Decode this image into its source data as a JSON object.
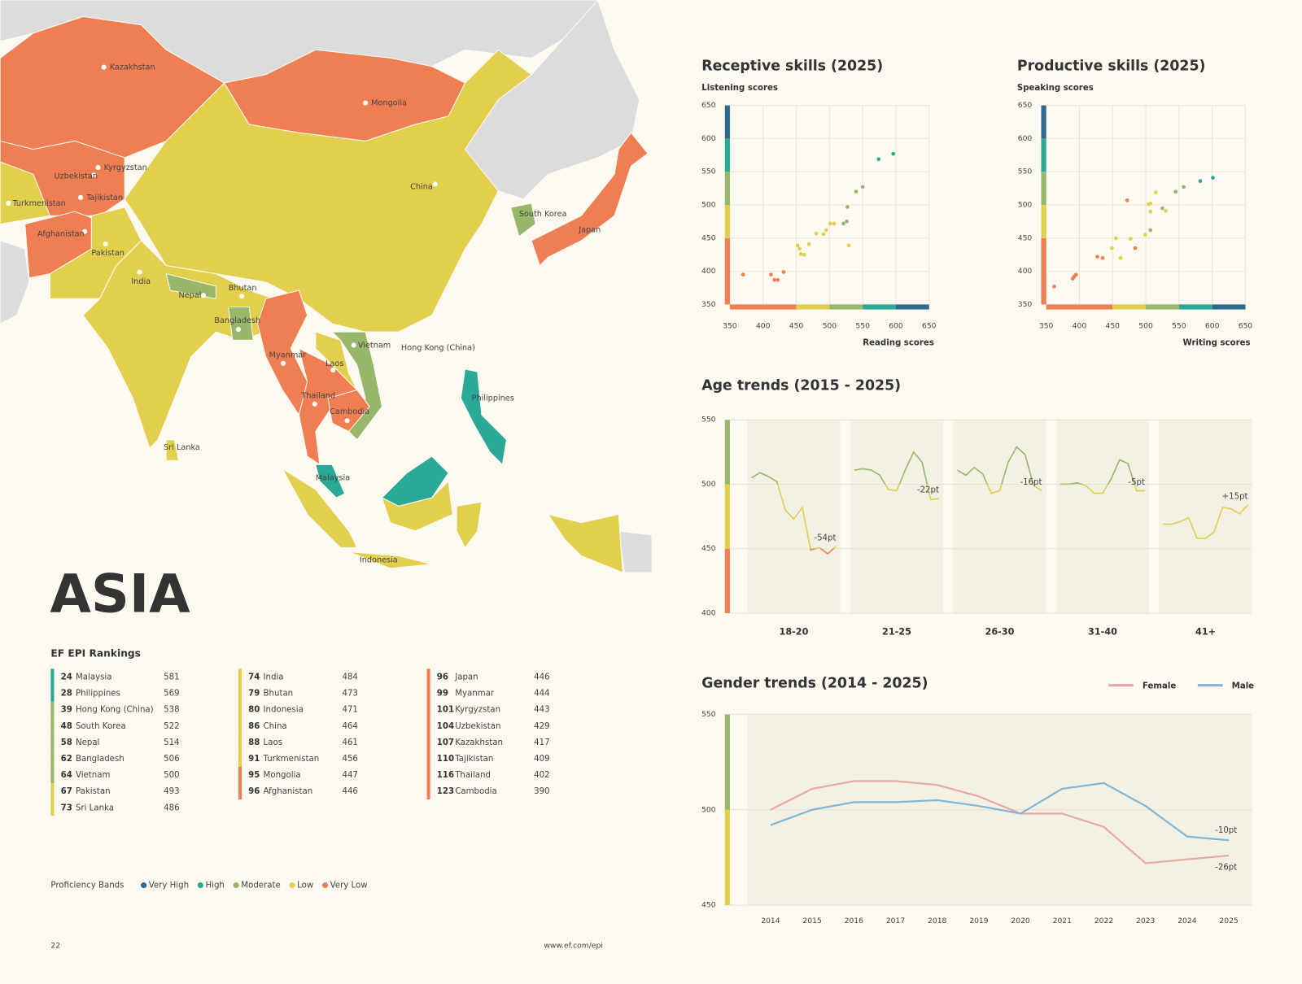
{
  "title": "ASIA",
  "map": {
    "labels": [
      "Kazakhstan",
      "Mongolia",
      "Kyrgyzstan",
      "Uzbekistan",
      "Turkmenistan",
      "Tajikistan",
      "Afghanistan",
      "Pakistan",
      "India",
      "Nepal",
      "Bhutan",
      "Bangladesh",
      "Myanmar",
      "Laos",
      "Vietnam",
      "Hong Kong (China)",
      "Thailand",
      "Cambodia",
      "Malaysia",
      "Philippines",
      "Indonesia",
      "Sri Lanka",
      "China",
      "South Korea",
      "Japan"
    ]
  },
  "rankings": {
    "title": "EF EPI Rankings",
    "columns": [
      [
        {
          "rank": 24,
          "country": "Malaysia",
          "score": 581,
          "color": "#2aa996"
        },
        {
          "rank": 28,
          "country": "Philippines",
          "score": 569,
          "color": "#2aa996"
        },
        {
          "rank": 39,
          "country": "Hong Kong (China)",
          "score": 538,
          "color": "#97b86a"
        },
        {
          "rank": 48,
          "country": "South Korea",
          "score": 522,
          "color": "#97b86a"
        },
        {
          "rank": 58,
          "country": "Nepal",
          "score": 514,
          "color": "#97b86a"
        },
        {
          "rank": 62,
          "country": "Bangladesh",
          "score": 506,
          "color": "#97b86a"
        },
        {
          "rank": 64,
          "country": "Vietnam",
          "score": 500,
          "color": "#97b86a"
        },
        {
          "rank": 67,
          "country": "Pakistan",
          "score": 493,
          "color": "#e3cf4e"
        },
        {
          "rank": 73,
          "country": "Sri Lanka",
          "score": 486,
          "color": "#e3cf4e"
        }
      ],
      [
        {
          "rank": 74,
          "country": "India",
          "score": 484,
          "color": "#e3cf4e"
        },
        {
          "rank": 79,
          "country": "Bhutan",
          "score": 473,
          "color": "#e3cf4e"
        },
        {
          "rank": 80,
          "country": "Indonesia",
          "score": 471,
          "color": "#e3cf4e"
        },
        {
          "rank": 86,
          "country": "China",
          "score": 464,
          "color": "#e3cf4e"
        },
        {
          "rank": 88,
          "country": "Laos",
          "score": 461,
          "color": "#e3cf4e"
        },
        {
          "rank": 91,
          "country": "Turkmenistan",
          "score": 456,
          "color": "#e3cf4e"
        },
        {
          "rank": 95,
          "country": "Mongolia",
          "score": 447,
          "color": "#ef7e52"
        },
        {
          "rank": 96,
          "country": "Afghanistan",
          "score": 446,
          "color": "#ef7e52"
        }
      ],
      [
        {
          "rank": 96,
          "country": "Japan",
          "score": 446,
          "color": "#ef7e52"
        },
        {
          "rank": 99,
          "country": "Myanmar",
          "score": 444,
          "color": "#ef7e52"
        },
        {
          "rank": 101,
          "country": "Kyrgyzstan",
          "score": 443,
          "color": "#ef7e52"
        },
        {
          "rank": 104,
          "country": "Uzbekistan",
          "score": 429,
          "color": "#ef7e52"
        },
        {
          "rank": 107,
          "country": "Kazakhstan",
          "score": 417,
          "color": "#ef7e52"
        },
        {
          "rank": 110,
          "country": "Tajikistan",
          "score": 409,
          "color": "#ef7e52"
        },
        {
          "rank": 116,
          "country": "Thailand",
          "score": 402,
          "color": "#ef7e52"
        },
        {
          "rank": 123,
          "country": "Cambodia",
          "score": 390,
          "color": "#ef7e52"
        }
      ]
    ]
  },
  "legend": {
    "title": "Proficiency Bands",
    "items": [
      {
        "name": "Very High",
        "color": "#2e6a8f"
      },
      {
        "name": "High",
        "color": "#2aa996"
      },
      {
        "name": "Moderate",
        "color": "#97b86a"
      },
      {
        "name": "Low",
        "color": "#e3cf4e"
      },
      {
        "name": "Very Low",
        "color": "#ef7e52"
      }
    ]
  },
  "footer": {
    "page": 22,
    "url": "www.ef.com/epi"
  },
  "chart_data": [
    {
      "type": "scatter",
      "title": "Receptive skills (2025)",
      "y_label": "Listening scores",
      "x_label": "Reading scores",
      "xlim": [
        350,
        650
      ],
      "ylim": [
        350,
        650
      ],
      "xticks": [
        350,
        400,
        450,
        500,
        550,
        600,
        650
      ],
      "yticks": [
        350,
        400,
        450,
        500,
        550,
        600,
        650
      ],
      "grid": true,
      "bands": [
        {
          "from": 350,
          "to": 450,
          "color": "#ef7e52"
        },
        {
          "from": 450,
          "to": 500,
          "color": "#e3cf4e"
        },
        {
          "from": 500,
          "to": 550,
          "color": "#97b86a"
        },
        {
          "from": 550,
          "to": 600,
          "color": "#2aa996"
        },
        {
          "from": 600,
          "to": 650,
          "color": "#2e6a8f"
        }
      ],
      "x": [
        370,
        412,
        417,
        422,
        431,
        452,
        455,
        457,
        462,
        469,
        480,
        491,
        495,
        501,
        507,
        521,
        526,
        529,
        527,
        540,
        550,
        574,
        596
      ],
      "y": [
        395,
        395,
        387,
        387,
        399,
        439,
        434,
        426,
        425,
        441,
        457,
        456,
        462,
        472,
        472,
        472,
        475,
        439,
        497,
        520,
        527,
        569,
        577
      ],
      "colors": [
        "#ef7e52",
        "#ef7e52",
        "#ef7e52",
        "#ef7e52",
        "#ef7e52",
        "#e3cf4e",
        "#e3cf4e",
        "#e3cf4e",
        "#e3cf4e",
        "#e3cf4e",
        "#e3cf4e",
        "#e3cf4e",
        "#e3cf4e",
        "#e3cf4e",
        "#e3cf4e",
        "#97b86a",
        "#97b86a",
        "#e3cf4e",
        "#97b86a",
        "#97b86a",
        "#97b86a",
        "#2aa996",
        "#2aa996"
      ]
    },
    {
      "type": "scatter",
      "title": "Productive skills (2025)",
      "y_label": "Speaking scores",
      "x_label": "Writing scores",
      "xlim": [
        350,
        650
      ],
      "ylim": [
        350,
        650
      ],
      "xticks": [
        350,
        400,
        450,
        500,
        550,
        600,
        650
      ],
      "yticks": [
        350,
        400,
        450,
        500,
        550,
        600,
        650
      ],
      "grid": true,
      "bands": [
        {
          "from": 350,
          "to": 450,
          "color": "#ef7e52"
        },
        {
          "from": 450,
          "to": 500,
          "color": "#e3cf4e"
        },
        {
          "from": 500,
          "to": 550,
          "color": "#97b86a"
        },
        {
          "from": 550,
          "to": 600,
          "color": "#2aa996"
        },
        {
          "from": 600,
          "to": 650,
          "color": "#2e6a8f"
        }
      ],
      "x": [
        362,
        390,
        392,
        395,
        427,
        435,
        449,
        455,
        462,
        472,
        477,
        484,
        499,
        504,
        507,
        507,
        507,
        515,
        525,
        530,
        545,
        557,
        582,
        601
      ],
      "y": [
        377,
        389,
        392,
        395,
        422,
        420,
        435,
        450,
        420,
        507,
        449,
        435,
        455,
        501,
        502,
        490,
        462,
        519,
        495,
        491,
        520,
        527,
        536,
        541
      ],
      "colors": [
        "#ef7e52",
        "#ef7e52",
        "#ef7e52",
        "#ef7e52",
        "#ef7e52",
        "#ef7e52",
        "#e3cf4e",
        "#e3cf4e",
        "#e3cf4e",
        "#ef7e52",
        "#e3cf4e",
        "#ef7e52",
        "#e3cf4e",
        "#e3cf4e",
        "#e3cf4e",
        "#e3cf4e",
        "#97b86a",
        "#e3cf4e",
        "#97b86a",
        "#e3cf4e",
        "#97b86a",
        "#97b86a",
        "#2aa996",
        "#2aa996"
      ]
    },
    {
      "type": "line",
      "title": "Age trends (2015 - 2025)",
      "ylim": [
        400,
        550
      ],
      "yticks": [
        400,
        450,
        500,
        550
      ],
      "grid": true,
      "bands": [
        {
          "from": 400,
          "to": 450,
          "color": "#ef7e52"
        },
        {
          "from": 450,
          "to": 500,
          "color": "#e3cf4e"
        },
        {
          "from": 500,
          "to": 550,
          "color": "#97b86a"
        }
      ],
      "groups": [
        {
          "category": "18-20",
          "annotation": "-54pt",
          "values": [
            505,
            509,
            506,
            502,
            480,
            473,
            482,
            449,
            451,
            446,
            452
          ]
        },
        {
          "category": "21-25",
          "annotation": "-22pt",
          "values": [
            511,
            512,
            511,
            507,
            496,
            495,
            511,
            525,
            517,
            488,
            489
          ]
        },
        {
          "category": "26-30",
          "annotation": "-16pt",
          "values": [
            511,
            507,
            513,
            508,
            493,
            495,
            517,
            529,
            523,
            499,
            495
          ]
        },
        {
          "category": "31-40",
          "annotation": "-5pt",
          "values": [
            500,
            500,
            501,
            499,
            493,
            493,
            504,
            519,
            516,
            495,
            495
          ]
        },
        {
          "category": "41+",
          "annotation": "+15pt",
          "values": [
            469,
            469,
            471,
            474,
            458,
            458,
            463,
            482,
            481,
            477,
            484
          ]
        }
      ]
    },
    {
      "type": "line",
      "title": "Gender trends (2014 - 2025)",
      "ylim": [
        450,
        550
      ],
      "yticks": [
        450,
        500,
        550
      ],
      "grid": true,
      "bands": [
        {
          "from": 450,
          "to": 500,
          "color": "#e3cf4e"
        },
        {
          "from": 500,
          "to": 550,
          "color": "#97b86a"
        }
      ],
      "categories": [
        2014,
        2015,
        2016,
        2017,
        2018,
        2019,
        2020,
        2021,
        2022,
        2023,
        2024,
        2025
      ],
      "series": [
        {
          "name": "Female",
          "color": "#e8a9a4",
          "annotation": "-26pt",
          "values": [
            500,
            511,
            515,
            515,
            513,
            507,
            498,
            498,
            491,
            472,
            474,
            476
          ]
        },
        {
          "name": "Male",
          "color": "#7fb6d6",
          "annotation": "-10pt",
          "values": [
            492,
            500,
            504,
            504,
            505,
            502,
            498,
            511,
            514,
            502,
            486,
            484
          ]
        }
      ]
    }
  ]
}
